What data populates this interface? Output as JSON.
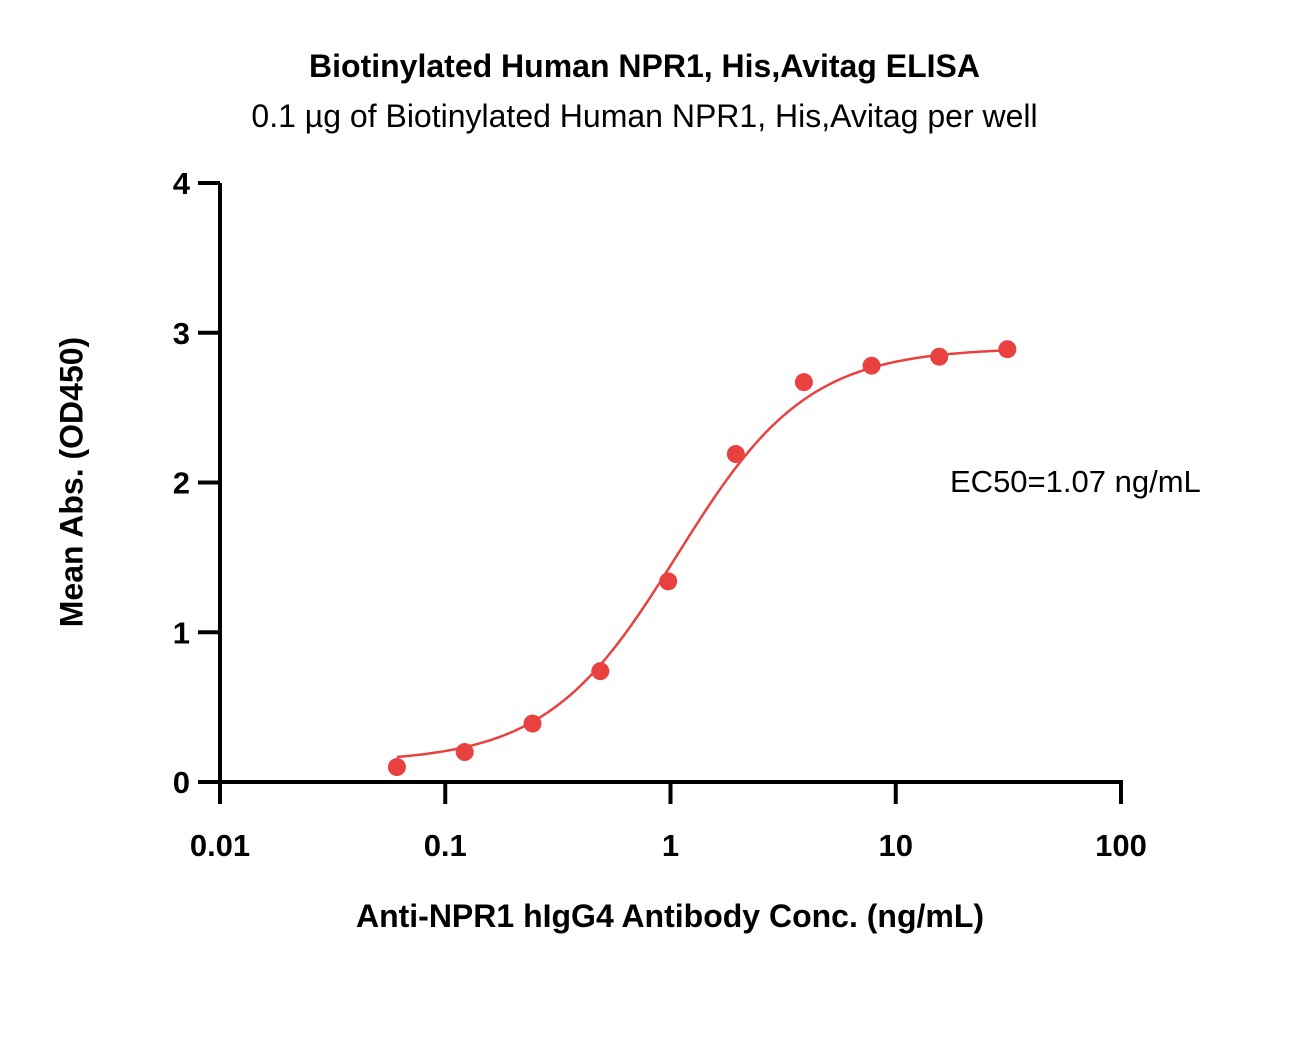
{
  "chart_data": {
    "type": "scatter",
    "title": "Biotinylated Human NPR1, His,Avitag ELISA",
    "subtitle": "0.1 µg of Biotinylated Human NPR1, His,Avitag per well",
    "xlabel": "Anti-NPR1 hIgG4 Antibody Conc. (ng/mL)",
    "ylabel": "Mean Abs. (OD450)",
    "x_scale": "log",
    "xlim": [
      0.01,
      100
    ],
    "ylim": [
      0,
      4
    ],
    "x_ticks": [
      0.01,
      0.1,
      1,
      10,
      100
    ],
    "x_tick_labels": [
      "0.01",
      "0.1",
      "1",
      "10",
      "100"
    ],
    "y_ticks": [
      0,
      1,
      2,
      3,
      4
    ],
    "y_tick_labels": [
      "0",
      "1",
      "2",
      "3",
      "4"
    ],
    "grid": false,
    "legend": "none",
    "annotation": "EC50=1.07 ng/mL",
    "color": "#e8413f",
    "series": [
      {
        "x": [
          0.061,
          0.122,
          0.244,
          0.488,
          0.977,
          1.95,
          3.91,
          7.81,
          15.6,
          31.3
        ],
        "y": [
          0.1,
          0.2,
          0.39,
          0.74,
          1.34,
          2.19,
          2.67,
          2.78,
          2.84,
          2.89
        ]
      }
    ],
    "fit": {
      "model": "4PL",
      "bottom": 0.13,
      "top": 2.9,
      "ec50": 1.07,
      "hill": 1.5
    }
  }
}
